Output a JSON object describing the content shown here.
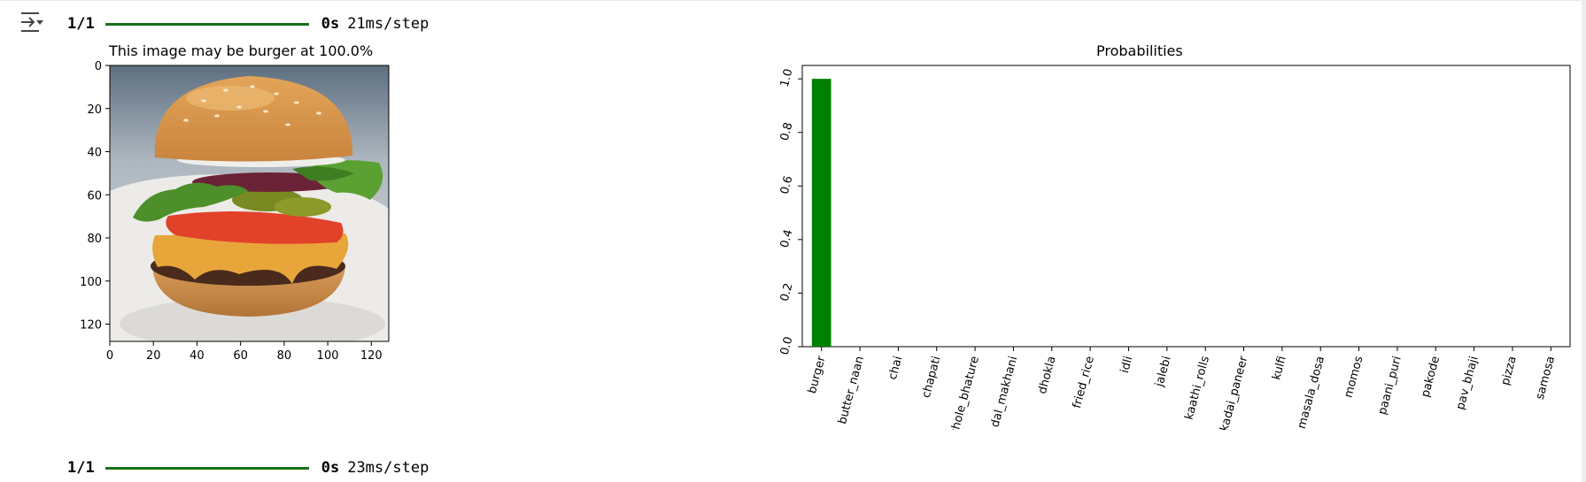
{
  "cell_outputs": [
    {
      "progress": {
        "step": "1/1",
        "time": "0s",
        "rate": "21ms/step"
      },
      "image_panel": {
        "title": "This image may be burger at 100.0%",
        "x_ticks": [
          "0",
          "20",
          "40",
          "60",
          "80",
          "100",
          "120"
        ],
        "y_ticks": [
          "0",
          "20",
          "40",
          "60",
          "80",
          "100",
          "120"
        ]
      }
    },
    {
      "progress": {
        "step": "1/1",
        "time": "0s",
        "rate": "23ms/step"
      }
    }
  ],
  "icons": {
    "output_toggle": "collapse-output-icon"
  },
  "colors": {
    "bar": "#008000",
    "progress": "#1b6e1b"
  },
  "chart_data": {
    "type": "bar",
    "title": "Probabilities",
    "xlabel": "",
    "ylabel": "",
    "categories": [
      "burger",
      "butter_naan",
      "chai",
      "chapati",
      "chole_bhature",
      "dal_makhani",
      "dhokla",
      "fried_rice",
      "idli",
      "jalebi",
      "kaathi_rolls",
      "kadai_paneer",
      "kulfi",
      "masala_dosa",
      "momos",
      "paani_puri",
      "pakode",
      "pav_bhaji",
      "pizza",
      "samosa"
    ],
    "values": [
      1.0,
      0,
      0,
      0,
      0,
      0,
      0,
      0,
      0,
      0,
      0,
      0,
      0,
      0,
      0,
      0,
      0,
      0,
      0,
      0
    ],
    "ylim": [
      0,
      1.05
    ],
    "y_ticks": [
      0.0,
      0.2,
      0.4,
      0.6,
      0.8,
      1.0
    ],
    "y_tick_labels": [
      "0.0",
      "0.2",
      "0.4",
      "0.6",
      "0.8",
      "1.0"
    ],
    "grid": false,
    "legend": "none"
  }
}
